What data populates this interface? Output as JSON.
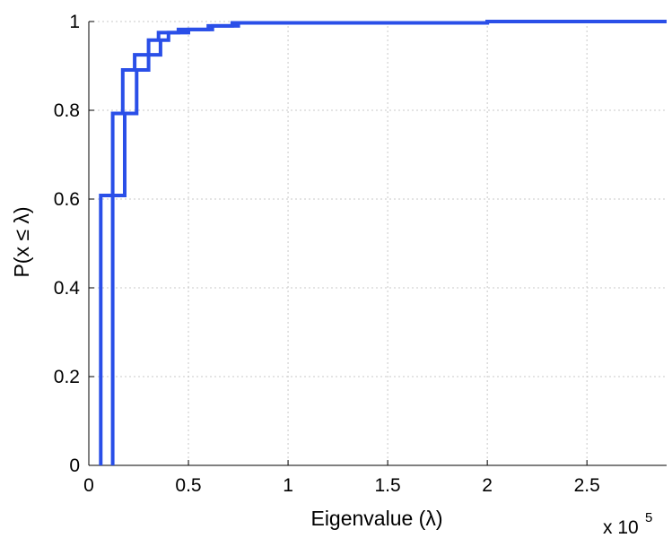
{
  "chart_data": {
    "type": "line",
    "title": "",
    "xlabel": "Eigenvalue (λ)",
    "ylabel": "P(x ≤ λ)",
    "x_multiplier_label": "x 10",
    "x_multiplier_exponent": "5",
    "xlim": [
      0,
      2.9
    ],
    "ylim": [
      0,
      1
    ],
    "xticks": [
      0,
      0.5,
      1,
      1.5,
      2,
      2.5
    ],
    "xtick_labels": [
      "0",
      "0.5",
      "1",
      "1.5",
      "2",
      "2.5"
    ],
    "yticks": [
      0,
      0.2,
      0.4,
      0.6,
      0.8,
      1
    ],
    "ytick_labels": [
      "0",
      "0.2",
      "0.4",
      "0.6",
      "0.8",
      "1"
    ],
    "grid": true,
    "series": [
      {
        "color": "#2a4fe8",
        "step": true,
        "points": [
          [
            0.06,
            0
          ],
          [
            0.06,
            0.608
          ],
          [
            0.12,
            0.608
          ],
          [
            0.12,
            0.793
          ],
          [
            0.17,
            0.793
          ],
          [
            0.17,
            0.891
          ],
          [
            0.23,
            0.891
          ],
          [
            0.23,
            0.925
          ],
          [
            0.3,
            0.925
          ],
          [
            0.3,
            0.958
          ],
          [
            0.35,
            0.958
          ],
          [
            0.35,
            0.975
          ],
          [
            0.45,
            0.975
          ],
          [
            0.45,
            0.982
          ],
          [
            0.6,
            0.982
          ],
          [
            0.6,
            0.99
          ],
          [
            0.72,
            0.99
          ],
          [
            0.72,
            0.997
          ],
          [
            2.0,
            0.997
          ],
          [
            2.0,
            1.0
          ],
          [
            2.9,
            1.0
          ]
        ]
      },
      {
        "color": "#2a4fe8",
        "step": true,
        "points": [
          [
            0.12,
            0
          ],
          [
            0.12,
            0.608
          ],
          [
            0.18,
            0.608
          ],
          [
            0.18,
            0.793
          ],
          [
            0.24,
            0.793
          ],
          [
            0.24,
            0.891
          ],
          [
            0.3,
            0.891
          ],
          [
            0.3,
            0.925
          ],
          [
            0.36,
            0.925
          ],
          [
            0.36,
            0.958
          ],
          [
            0.4,
            0.958
          ],
          [
            0.4,
            0.975
          ],
          [
            0.5,
            0.975
          ],
          [
            0.5,
            0.982
          ],
          [
            0.62,
            0.982
          ],
          [
            0.62,
            0.99
          ],
          [
            0.75,
            0.99
          ],
          [
            0.75,
            0.997
          ],
          [
            2.0,
            0.997
          ],
          [
            2.0,
            1.0
          ],
          [
            2.9,
            1.0
          ]
        ]
      }
    ]
  }
}
